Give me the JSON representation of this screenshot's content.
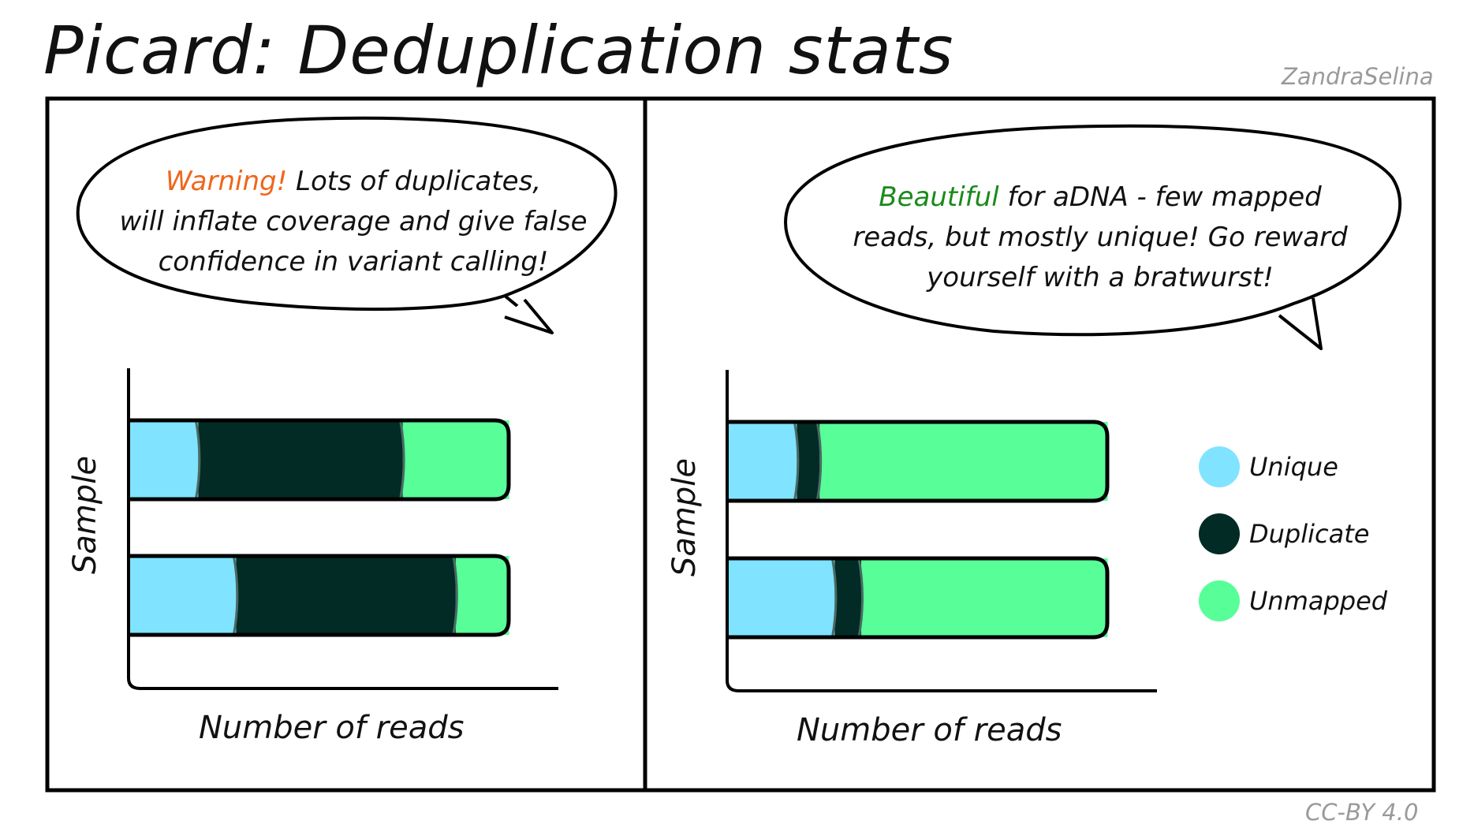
{
  "title": "Picard: Deduplication stats",
  "author": "ZandraSelina",
  "license": "CC-BY 4.0",
  "colors": {
    "unique": "#80E3FF",
    "duplicate": "#022B25",
    "unmapped": "#58FE98",
    "warning": "#F0661A",
    "beautiful": "#1A8A1A"
  },
  "legend": [
    {
      "label": "Unique",
      "color": "#80E3FF"
    },
    {
      "label": "Duplicate",
      "color": "#022B25"
    },
    {
      "label": "Unmapped",
      "color": "#58FE98"
    }
  ],
  "panels": [
    {
      "bubble": {
        "highlight": "Warning!",
        "line1": " Lots of duplicates,",
        "line2": "will inflate coverage and give false",
        "line3": "confidence in variant calling!"
      },
      "ylabel": "Sample",
      "xlabel": "Number of reads",
      "bars": [
        {
          "unique": 18,
          "duplicate": 54,
          "unmapped": 28
        },
        {
          "unique": 28,
          "duplicate": 58,
          "unmapped": 14
        }
      ]
    },
    {
      "bubble": {
        "highlight": "Beautiful",
        "line1": " for aDNA - few mapped",
        "line2": "reads, but mostly unique! Go reward",
        "line3": "yourself with a bratwurst!"
      },
      "ylabel": "Sample",
      "xlabel": "Number of reads",
      "bars": [
        {
          "unique": 18,
          "duplicate": 6,
          "unmapped": 76
        },
        {
          "unique": 28,
          "duplicate": 7,
          "unmapped": 65
        }
      ]
    }
  ]
}
